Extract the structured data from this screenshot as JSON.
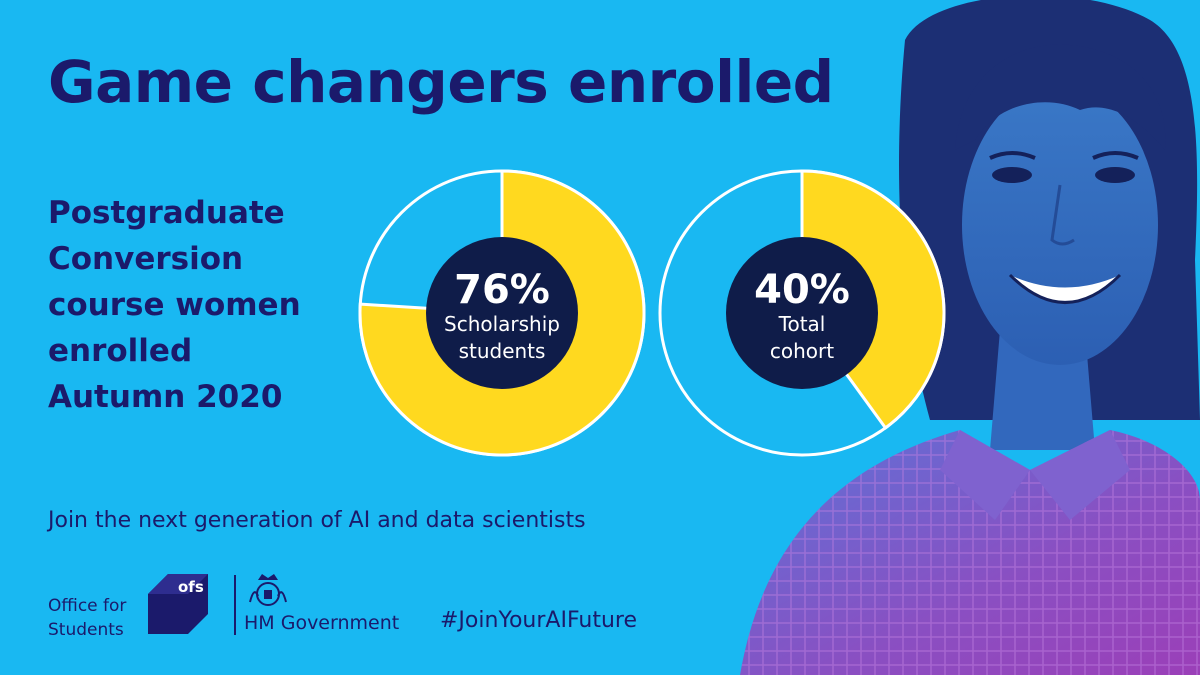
{
  "headline": "Game changers enrolled",
  "subtitle_lines": [
    "Postgraduate",
    "Conversion",
    "course women",
    "enrolled",
    "Autumn 2020"
  ],
  "tagline": "Join the next generation of AI and data scientists",
  "hashtag": "#JoinYourAIFuture",
  "logos": {
    "ofs_lines": [
      "Office for",
      "Students"
    ],
    "ofs_badge": "ofs",
    "hmg": "HM Government"
  },
  "colors": {
    "background": "#19b8f2",
    "text": "#1b1a6b",
    "fill": "#ffd91f",
    "center": "#0f1c49",
    "ring": "#ffffff"
  },
  "chart_data": [
    {
      "type": "pie",
      "label_value": "76%",
      "label_lines": [
        "Scholarship",
        "students"
      ],
      "values": [
        76,
        24
      ]
    },
    {
      "type": "pie",
      "label_value": "40%",
      "label_lines": [
        "Total",
        "cohort"
      ],
      "values": [
        40,
        60
      ]
    }
  ]
}
